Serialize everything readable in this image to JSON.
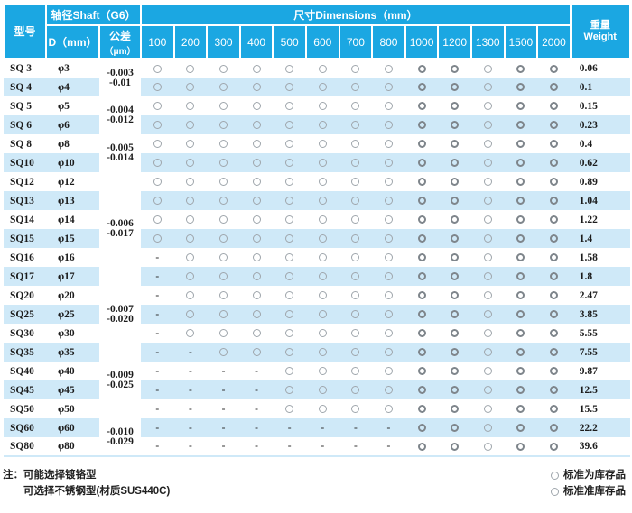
{
  "table": {
    "header": {
      "model": "型号",
      "shaft": "轴径Shaft（G6）",
      "d": "D（mm）",
      "tolerance_line1": "公差",
      "tolerance_line2": "（μm）",
      "dimensions": "尺寸Dimensions（mm）",
      "dimension_columns": [
        "100",
        "200",
        "300",
        "400",
        "500",
        "600",
        "700",
        "800",
        "1000",
        "1200",
        "1300",
        "1500",
        "2000"
      ],
      "weight_cn": "重量",
      "weight_en": "Weight"
    },
    "cell_codes": {
      "o": "standard-stock-circle",
      "O": "standard-semi-stock-circle",
      "-": "not-available"
    },
    "rows": [
      {
        "model": "SQ 3",
        "d": "φ3",
        "cells": "ooooooooOOoOO",
        "weight": "0.06"
      },
      {
        "model": "SQ 4",
        "d": "φ4",
        "cells": "ooooooooOOoOO",
        "weight": "0.1"
      },
      {
        "model": "SQ 5",
        "d": "φ5",
        "cells": "ooooooooOOoOO",
        "weight": "0.15"
      },
      {
        "model": "SQ 6",
        "d": "φ6",
        "cells": "ooooooooOOoOO",
        "weight": "0.23"
      },
      {
        "model": "SQ 8",
        "d": "φ8",
        "cells": "ooooooooOOoOO",
        "weight": "0.4"
      },
      {
        "model": "SQ10",
        "d": "φ10",
        "cells": "ooooooooOOoOO",
        "weight": "0.62"
      },
      {
        "model": "SQ12",
        "d": "φ12",
        "cells": "ooooooooOOoOO",
        "weight": "0.89"
      },
      {
        "model": "SQ13",
        "d": "φ13",
        "cells": "ooooooooOOoOO",
        "weight": "1.04"
      },
      {
        "model": "SQ14",
        "d": "φ14",
        "cells": "ooooooooOOoOO",
        "weight": "1.22"
      },
      {
        "model": "SQ15",
        "d": "φ15",
        "cells": "ooooooooOOoOO",
        "weight": "1.4"
      },
      {
        "model": "SQ16",
        "d": "φ16",
        "cells": "-oooooooOOoOO",
        "weight": "1.58"
      },
      {
        "model": "SQ17",
        "d": "φ17",
        "cells": "-oooooooOOoOO",
        "weight": "1.8"
      },
      {
        "model": "SQ20",
        "d": "φ20",
        "cells": "-oooooooOOoOO",
        "weight": "2.47"
      },
      {
        "model": "SQ25",
        "d": "φ25",
        "cells": "-oooooooOOoOO",
        "weight": "3.85"
      },
      {
        "model": "SQ30",
        "d": "φ30",
        "cells": "-oooooooOOoOO",
        "weight": "5.55"
      },
      {
        "model": "SQ35",
        "d": "φ35",
        "cells": "--ooooooOOoOO",
        "weight": "7.55"
      },
      {
        "model": "SQ40",
        "d": "φ40",
        "cells": "----ooooOOoOO",
        "weight": "9.87"
      },
      {
        "model": "SQ45",
        "d": "φ45",
        "cells": "----ooooOOoOO",
        "weight": "12.5"
      },
      {
        "model": "SQ50",
        "d": "φ50",
        "cells": "----ooooOOoOO",
        "weight": "15.5"
      },
      {
        "model": "SQ60",
        "d": "φ60",
        "cells": "--------OOoOO",
        "weight": "22.2"
      },
      {
        "model": "SQ80",
        "d": "φ80",
        "cells": "--------OOoOO",
        "weight": "39.6"
      }
    ],
    "tolerance_groups": [
      {
        "start": 0,
        "rows": 2,
        "line1": "-0.003",
        "line2": "-0.01"
      },
      {
        "start": 2,
        "rows": 2,
        "line1": "-0.004",
        "line2": "-0.012"
      },
      {
        "start": 4,
        "rows": 2,
        "line1": "-0.005",
        "line2": "-0.014"
      },
      {
        "start": 6,
        "rows": 6,
        "line1": "-0.006",
        "line2": "-0.017"
      },
      {
        "start": 12,
        "rows": 3,
        "line1": "-0.007",
        "line2": "-0.020"
      },
      {
        "start": 15,
        "rows": 4,
        "line1": "-0.009",
        "line2": "-0.025"
      },
      {
        "start": 19,
        "rows": 2,
        "line1": "-0.010",
        "line2": "-0.029"
      }
    ]
  },
  "footer": {
    "note_line1": "注：可能选择镀铬型",
    "note_line2": "可选择不锈钢型(材质SUS440C)",
    "legend": [
      {
        "symbol": "circle",
        "label": "标准为库存品"
      },
      {
        "symbol": "circle",
        "label": "标准准库存品"
      }
    ]
  },
  "colors": {
    "header_bg": "#1BA7E2",
    "stripe_bg": "#CFE9F8",
    "circle_light": "#9FA6AC",
    "circle_bold": "#7E858B",
    "text": "#1C1C1C"
  }
}
